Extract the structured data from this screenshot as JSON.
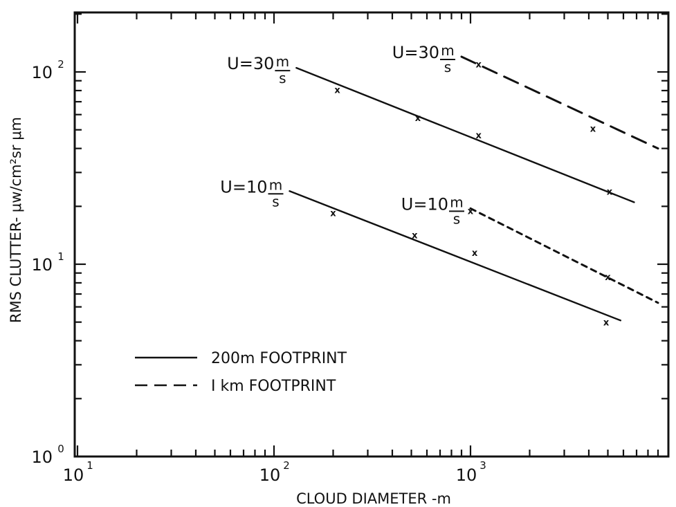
{
  "chart_data": {
    "type": "line",
    "title": "",
    "xlabel": "CLOUD DIAMETER -m",
    "ylabel": "RMS CLUTTER- μw/cm²sr μm",
    "xscale": "log",
    "yscale": "log",
    "xlim": [
      10,
      9000
    ],
    "ylim": [
      1,
      220
    ],
    "grid": false,
    "legend_position": "bottom-left",
    "x_ticks": [
      {
        "value": 10,
        "base": "10",
        "exp": "1"
      },
      {
        "value": 100,
        "base": "10",
        "exp": "2"
      },
      {
        "value": 1000,
        "base": "10",
        "exp": "3"
      }
    ],
    "y_ticks": [
      {
        "value": 1,
        "base": "10",
        "exp": "0"
      },
      {
        "value": 10,
        "base": "10",
        "exp": "1"
      },
      {
        "value": 100,
        "base": "10",
        "exp": "2"
      }
    ],
    "legend": [
      {
        "label": "200m FOOTPRINT",
        "style": "solid"
      },
      {
        "label": "I km FOOTPRINT",
        "style": "dashed"
      }
    ],
    "series": [
      {
        "style": "solid",
        "line": {
          "x": [
            120,
            5800
          ],
          "y": [
            24,
            5.1
          ]
        },
        "markers": {
          "x": [
            200,
            520,
            1050,
            4900
          ],
          "y": [
            18.5,
            14.2,
            11.5,
            5.0
          ]
        },
        "annotation": {
          "pre": "U=10",
          "num": "m",
          "den": "s"
        }
      },
      {
        "style": "dashed",
        "line": {
          "x": [
            1000,
            9000
          ],
          "y": [
            19.5,
            6.3
          ]
        },
        "markers": {
          "x": [
            1000,
            5000
          ],
          "y": [
            19.0,
            8.6
          ]
        },
        "annotation": {
          "pre": "U=10",
          "num": "m",
          "den": "s"
        }
      },
      {
        "style": "solid",
        "line": {
          "x": [
            130,
            6800
          ],
          "y": [
            105,
            21
          ]
        },
        "markers": {
          "x": [
            210,
            540,
            1100,
            5100
          ],
          "y": [
            81,
            58,
            47,
            24
          ]
        },
        "annotation": {
          "pre": "U=30",
          "num": "m",
          "den": "s"
        }
      },
      {
        "style": "dashed",
        "line": {
          "x": [
            900,
            9000
          ],
          "y": [
            120,
            40
          ]
        },
        "markers": {
          "x": [
            1100,
            4200
          ],
          "y": [
            110,
            51
          ]
        },
        "annotation": {
          "pre": "U=30",
          "num": "m",
          "den": "s"
        }
      }
    ]
  }
}
